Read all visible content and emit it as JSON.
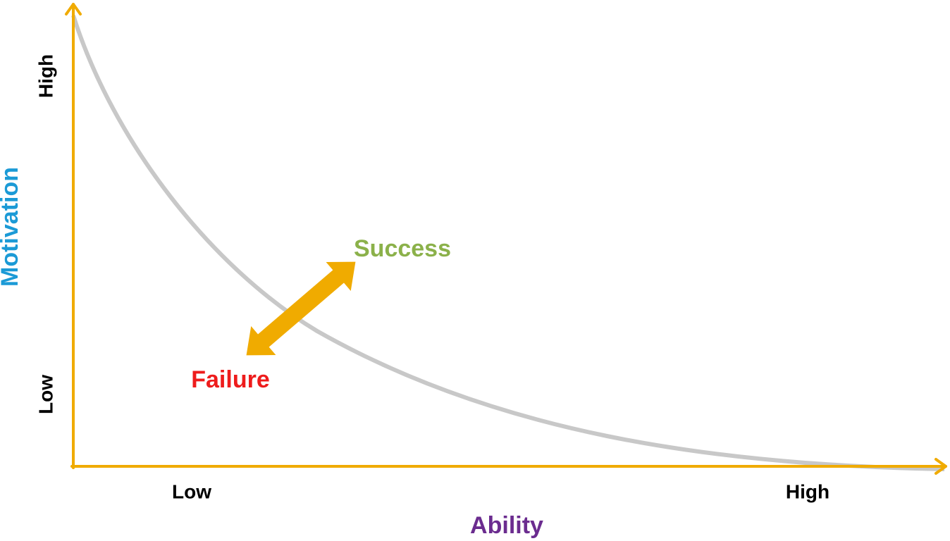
{
  "y_axis": {
    "label": "Motivation",
    "low": "Low",
    "high": "High"
  },
  "x_axis": {
    "label": "Ability",
    "low": "Low",
    "high": "High"
  },
  "outcomes": {
    "success": "Success",
    "failure": "Failure"
  }
}
